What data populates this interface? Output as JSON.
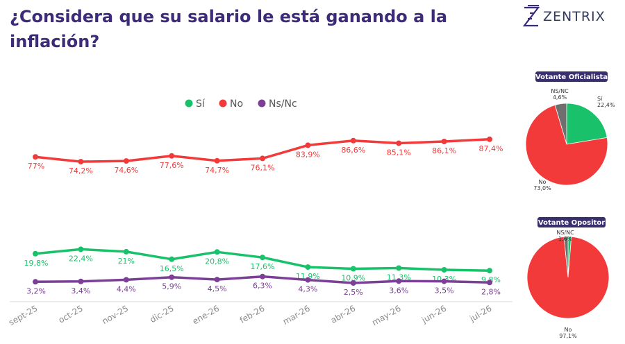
{
  "title": "¿Considera que su salario le está ganando a la inflación?",
  "brand": {
    "name": "ZENTRIX"
  },
  "colors": {
    "si": "#19c26a",
    "no": "#f23a3a",
    "nsnc": "#7b3f96",
    "title": "#3d2b7a",
    "pill": "#3a2f6e",
    "gray": "#6f6f6f"
  },
  "chart_data": [
    {
      "type": "line",
      "title": "",
      "categories": [
        "sept-25",
        "oct-25",
        "nov-25",
        "dic-25",
        "ene-26",
        "feb-26",
        "mar-26",
        "abr-26",
        "may-26",
        "jun-26",
        "jul-26"
      ],
      "series": [
        {
          "name": "Sí",
          "values": [
            19.8,
            22.4,
            21,
            16.5,
            20.8,
            17.6,
            11.9,
            10.9,
            11.3,
            10.3,
            9.8
          ],
          "labels": [
            "19,8%",
            "22,4%",
            "21%",
            "16,5%",
            "20,8%",
            "17,6%",
            "11,9%",
            "10,9%",
            "11,3%",
            "10,3%",
            "9,8%"
          ]
        },
        {
          "name": "No",
          "values": [
            77,
            74.2,
            74.6,
            77.6,
            74.7,
            76.1,
            83.9,
            86.6,
            85.1,
            86.1,
            87.4
          ],
          "labels": [
            "77%",
            "74,2%",
            "74,6%",
            "77,6%",
            "74,7%",
            "76,1%",
            "83,9%",
            "86,6%",
            "85,1%",
            "86,1%",
            "87,4%"
          ]
        },
        {
          "name": "Ns/Nc",
          "values": [
            3.2,
            3.4,
            4.4,
            5.9,
            4.5,
            6.3,
            4.3,
            2.5,
            3.6,
            3.5,
            2.8
          ],
          "labels": [
            "3,2%",
            "3,4%",
            "4,4%",
            "5,9%",
            "4,5%",
            "6,3%",
            "4,3%",
            "2,5%",
            "3,6%",
            "3,5%",
            "2,8%"
          ]
        }
      ],
      "legend": "top-center",
      "grid": false
    },
    {
      "type": "pie",
      "title": "Votante Oficialista",
      "slices": [
        {
          "name": "Sí",
          "value": 22.4,
          "label": "22,4%"
        },
        {
          "name": "No",
          "value": 73.0,
          "label": "73,0%"
        },
        {
          "name": "NS/NC",
          "value": 4.6,
          "label": "4,6%"
        }
      ]
    },
    {
      "type": "pie",
      "title": "Votante Opositor",
      "slices": [
        {
          "name": "Sí",
          "value": 1.3,
          "label": ""
        },
        {
          "name": "No",
          "value": 97.1,
          "label": "97,1%"
        },
        {
          "name": "NS/NC",
          "value": 1.6,
          "label": "1,6%"
        }
      ]
    }
  ]
}
